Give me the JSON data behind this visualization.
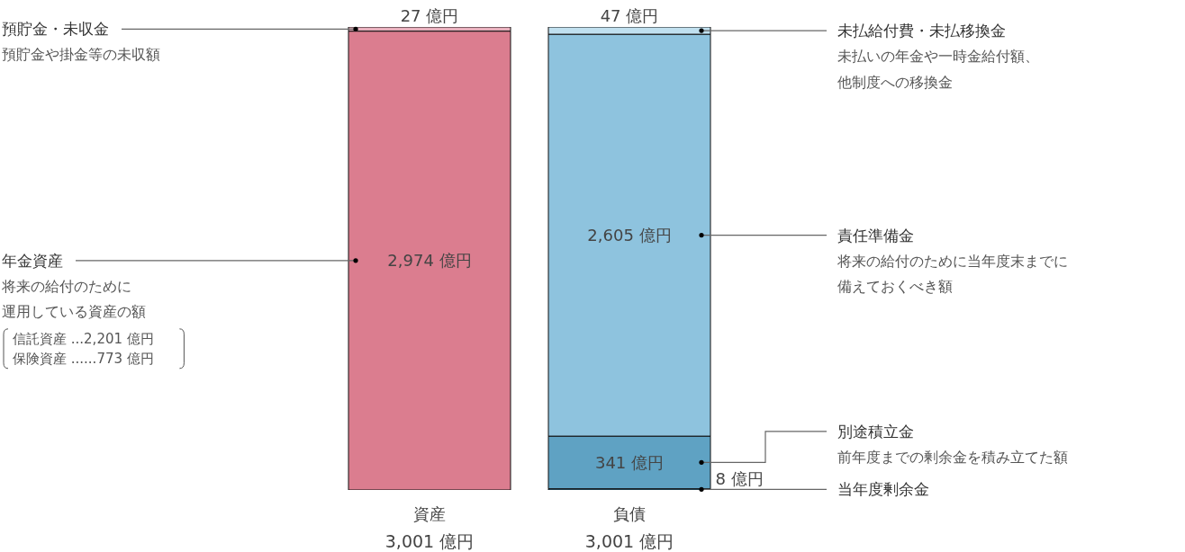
{
  "chart_data": {
    "type": "bar",
    "stacked": true,
    "categories": [
      "資産",
      "負債"
    ],
    "totals": [
      "3,001 億円",
      "3,001 億円"
    ],
    "series": [
      {
        "name": "年金資産",
        "color": "#db7d8f",
        "values": [
          2974,
          null
        ],
        "value_labels": [
          "2,974 億円",
          null
        ]
      },
      {
        "name": "預貯金・未収金",
        "color": "#e8b0bd",
        "values": [
          27,
          null
        ],
        "value_labels": [
          "27 億円",
          null
        ]
      },
      {
        "name": "当年度剰余金",
        "color": "#3a8bb0",
        "values": [
          null,
          8
        ],
        "value_labels": [
          null,
          "8 億円"
        ]
      },
      {
        "name": "別途積立金",
        "color": "#5fa2c3",
        "values": [
          null,
          341
        ],
        "value_labels": [
          null,
          "341 億円"
        ]
      },
      {
        "name": "責任準備金",
        "color": "#8ec3de",
        "values": [
          null,
          2605
        ],
        "value_labels": [
          null,
          "2,605 億円"
        ]
      },
      {
        "name": "未払給付費・未払移換金",
        "color": "#c0e0ef",
        "values": [
          null,
          47
        ],
        "value_labels": [
          null,
          "47 億円"
        ]
      }
    ],
    "annotations": [
      "預貯金や掛金等の未収額",
      "将来の給付のために運用している資産の額",
      "信託資産 ...2,201 億円",
      "保険資産 ......773 億円",
      "未払いの年金や一時金給付額、他制度への移換金",
      "将来の給付のために当年度末までに備えておくべき額",
      "前年度までの剰余金を積み立てた額"
    ]
  }
}
